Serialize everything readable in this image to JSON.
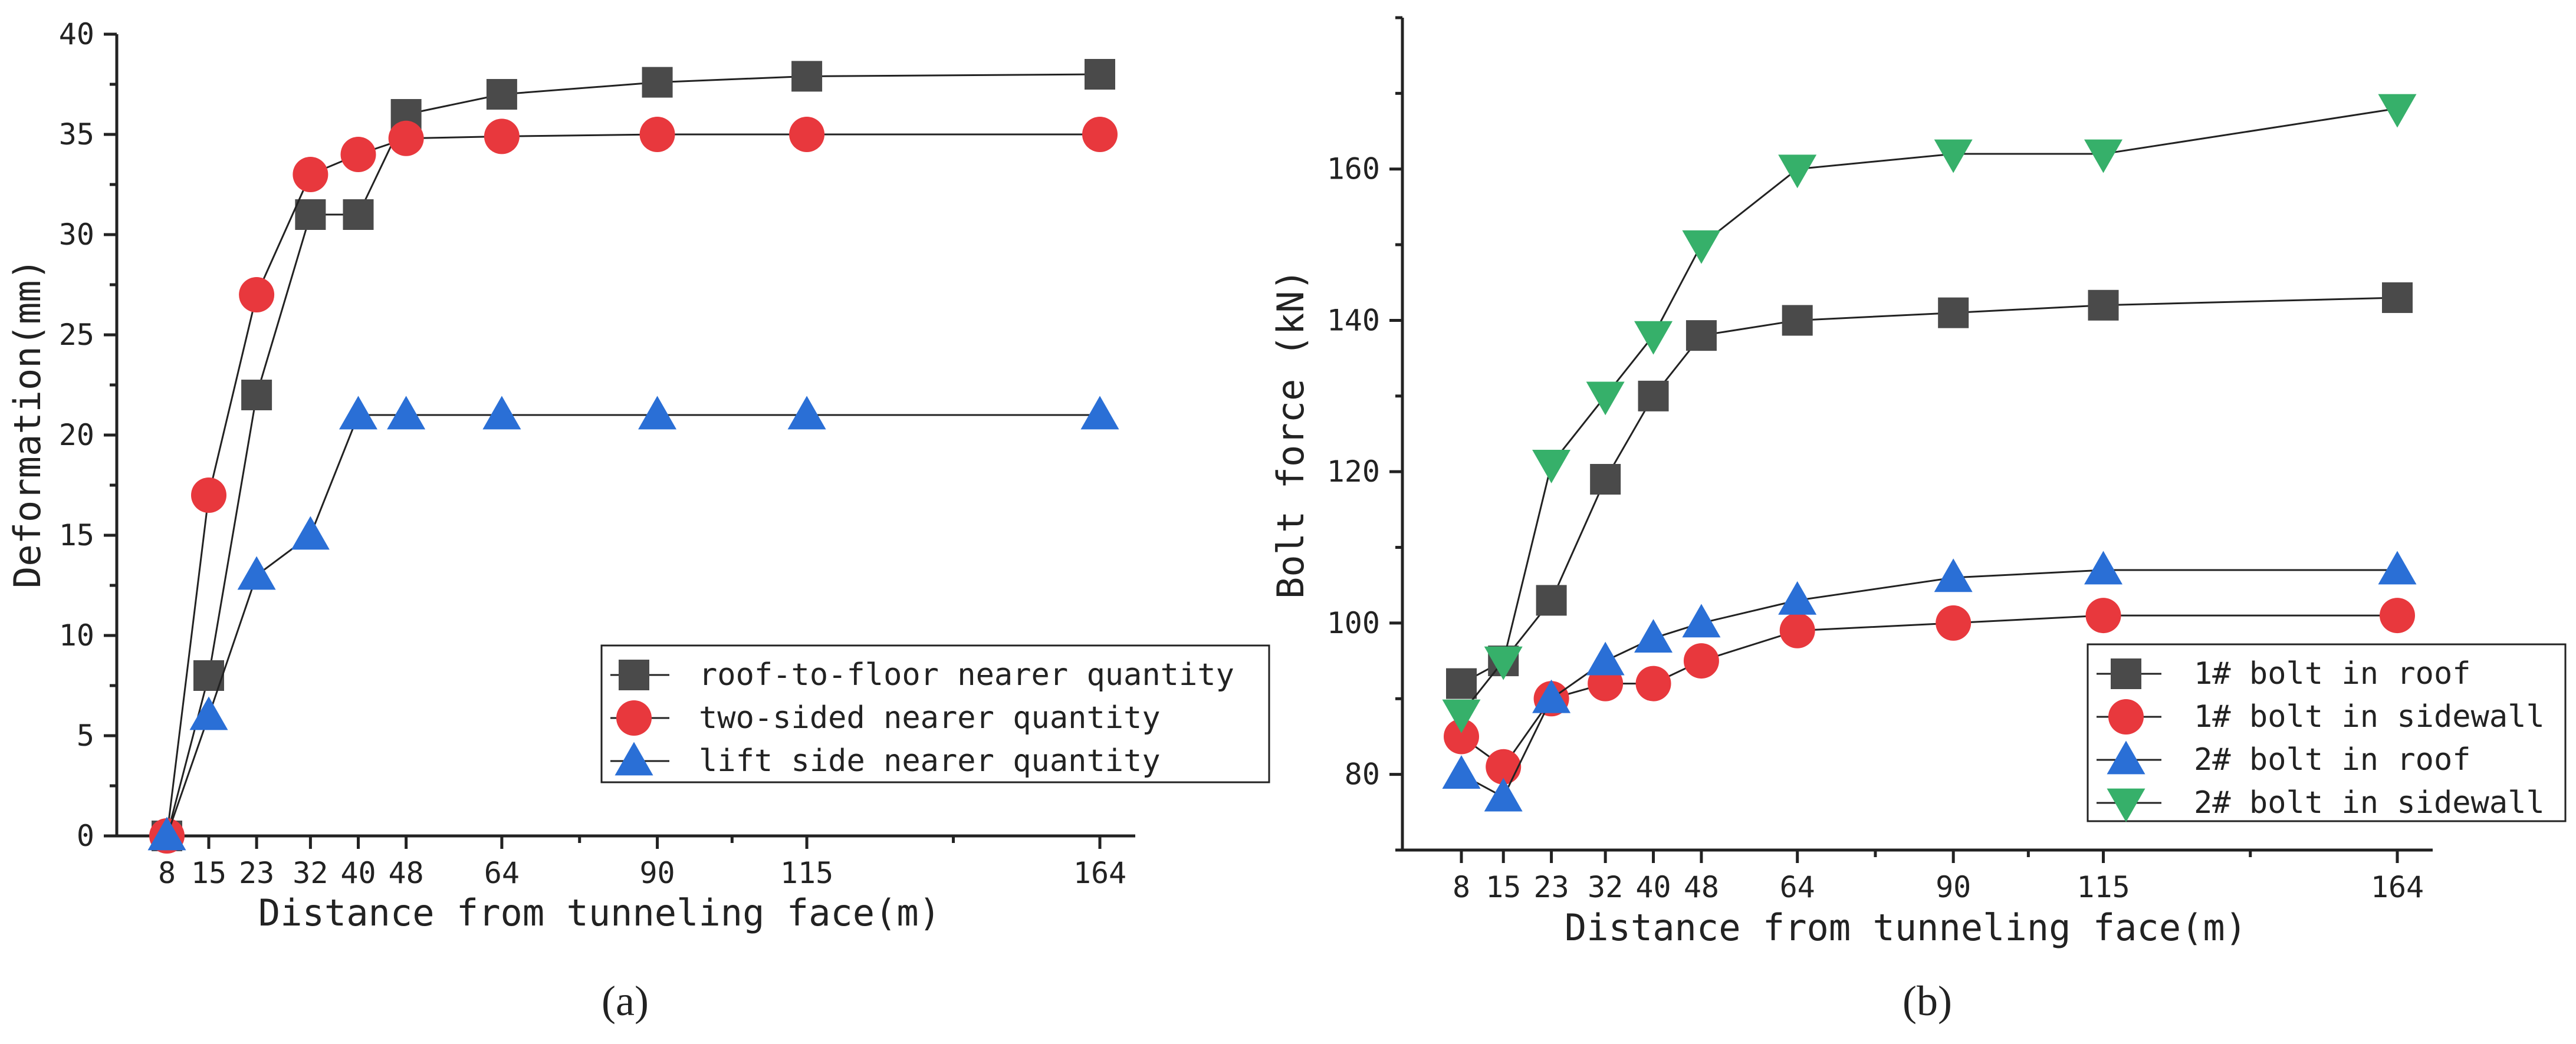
{
  "charts": [
    {
      "type": "line",
      "panel_label": "(a)",
      "xlabel": "Distance from tunneling face(m)",
      "ylabel": "Deformation(mm)",
      "x_ticks": [
        8,
        15,
        23,
        32,
        40,
        48,
        64,
        90,
        115,
        164
      ],
      "xlim": [
        8,
        164
      ],
      "ylim": [
        0,
        40
      ],
      "y_ticks": [
        0,
        5,
        10,
        15,
        20,
        25,
        30,
        35,
        40
      ],
      "y_tick_labels": [
        "0",
        "5",
        "10",
        "15",
        "20",
        "25",
        "30",
        "35",
        "40"
      ],
      "legend_position": "bottom-right",
      "series": [
        {
          "name": "roof-to-floor nearer quantity",
          "marker": "square",
          "color": "#4a4a4a",
          "x": [
            8,
            15,
            23,
            32,
            40,
            48,
            64,
            90,
            115,
            164
          ],
          "values": [
            0,
            8,
            22,
            31,
            31,
            36,
            37,
            37.6,
            37.9,
            38
          ]
        },
        {
          "name": "two-sided nearer quantity",
          "marker": "circle",
          "color": "#e8383d",
          "x": [
            8,
            15,
            23,
            32,
            40,
            48,
            64,
            90,
            115,
            164
          ],
          "values": [
            0,
            17,
            27,
            33,
            34,
            34.8,
            34.9,
            35,
            35,
            35
          ]
        },
        {
          "name": "lift side nearer quantity",
          "marker": "triangle-up",
          "color": "#2a6fd6",
          "x": [
            8,
            15,
            23,
            32,
            40,
            48,
            64,
            90,
            115,
            164
          ],
          "values": [
            0,
            6,
            13,
            15,
            21,
            21,
            21,
            21,
            21,
            21
          ]
        }
      ]
    },
    {
      "type": "line",
      "panel_label": "(b)",
      "xlabel": "Distance from tunneling face(m)",
      "ylabel": "Bolt force (kN)",
      "x_ticks": [
        8,
        15,
        23,
        32,
        40,
        48,
        64,
        90,
        115,
        164
      ],
      "xlim": [
        8,
        164
      ],
      "ylim": [
        70,
        180
      ],
      "y_ticks": [
        80,
        100,
        120,
        140,
        160
      ],
      "y_tick_labels": [
        "80",
        "100",
        "120",
        "140",
        "160"
      ],
      "legend_position": "bottom-right",
      "series": [
        {
          "name": "1# bolt in roof",
          "marker": "square",
          "color": "#4a4a4a",
          "x": [
            8,
            15,
            23,
            32,
            40,
            48,
            64,
            90,
            115,
            164
          ],
          "values": [
            92,
            95,
            103,
            119,
            130,
            138,
            140,
            141,
            142,
            143
          ]
        },
        {
          "name": "1# bolt in sidewall",
          "marker": "circle",
          "color": "#e8383d",
          "x": [
            8,
            15,
            23,
            32,
            40,
            48,
            64,
            90,
            115,
            164
          ],
          "values": [
            85,
            81,
            90,
            92,
            92,
            95,
            99,
            100,
            101,
            101
          ]
        },
        {
          "name": "2# bolt in roof",
          "marker": "triangle-up",
          "color": "#2a6fd6",
          "x": [
            8,
            15,
            23,
            32,
            40,
            48,
            64,
            90,
            115,
            164
          ],
          "values": [
            80,
            77,
            90,
            95,
            98,
            100,
            103,
            106,
            107,
            107
          ]
        },
        {
          "name": "2# bolt in sidewall",
          "marker": "triangle-down",
          "color": "#36b06a",
          "x": [
            8,
            15,
            23,
            32,
            40,
            48,
            64,
            90,
            115,
            164
          ],
          "values": [
            88,
            95,
            121,
            130,
            138,
            150,
            160,
            162,
            162,
            168
          ]
        }
      ]
    }
  ]
}
